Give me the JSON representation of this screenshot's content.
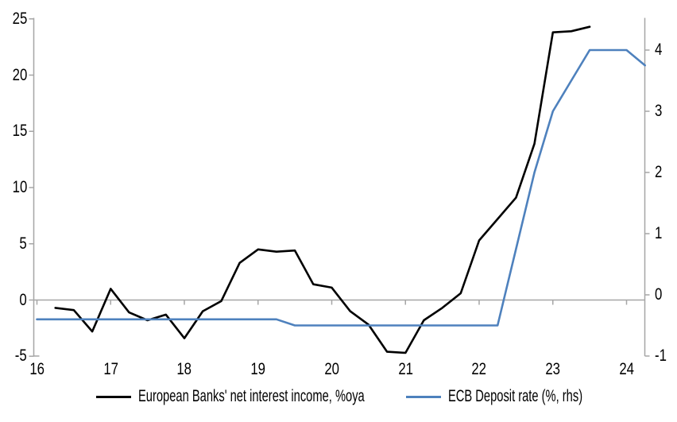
{
  "chart_data": {
    "type": "line",
    "title": "",
    "grid": "zero-line-only",
    "x_axis": {
      "range": [
        16,
        24.25
      ],
      "ticks": [
        16,
        17,
        18,
        19,
        20,
        21,
        22,
        23,
        24
      ],
      "tick_labels": [
        "16",
        "17",
        "18",
        "19",
        "20",
        "21",
        "22",
        "23",
        "24"
      ]
    },
    "y_axis_left": {
      "range": [
        -5,
        25
      ],
      "ticks": [
        -5,
        0,
        5,
        10,
        15,
        20,
        25
      ],
      "tick_labels": [
        "-5",
        "0",
        "5",
        "10",
        "15",
        "20",
        "25"
      ]
    },
    "y_axis_right": {
      "range": [
        -1,
        4.5
      ],
      "ticks": [
        -1,
        0,
        1,
        2,
        3,
        4
      ],
      "tick_labels": [
        "-1",
        "0",
        "1",
        "2",
        "3",
        "4"
      ]
    },
    "legend_position": "bottom",
    "series": [
      {
        "name": "European Banks' net interest income, %oya",
        "axis": "left",
        "color": "#000000",
        "points": [
          [
            16.25,
            -0.7
          ],
          [
            16.5,
            -0.9
          ],
          [
            16.75,
            -2.8
          ],
          [
            17.0,
            1.0
          ],
          [
            17.25,
            -1.1
          ],
          [
            17.5,
            -1.8
          ],
          [
            17.75,
            -1.3
          ],
          [
            18.0,
            -3.4
          ],
          [
            18.25,
            -1.0
          ],
          [
            18.5,
            -0.1
          ],
          [
            18.75,
            3.3
          ],
          [
            19.0,
            4.5
          ],
          [
            19.25,
            4.3
          ],
          [
            19.5,
            4.4
          ],
          [
            19.75,
            1.4
          ],
          [
            20.0,
            1.1
          ],
          [
            20.25,
            -1.0
          ],
          [
            20.5,
            -2.2
          ],
          [
            20.75,
            -4.6
          ],
          [
            21.0,
            -4.7
          ],
          [
            21.25,
            -1.8
          ],
          [
            21.5,
            -0.7
          ],
          [
            21.75,
            0.6
          ],
          [
            22.0,
            5.3
          ],
          [
            22.25,
            7.2
          ],
          [
            22.5,
            9.1
          ],
          [
            22.75,
            13.9
          ],
          [
            23.0,
            23.8
          ],
          [
            23.25,
            23.9
          ],
          [
            23.5,
            24.3
          ]
        ]
      },
      {
        "name": "ECB Deposit rate (%, rhs)",
        "axis": "right",
        "color": "#4E81BD",
        "points": [
          [
            16.0,
            -0.4
          ],
          [
            16.25,
            -0.4
          ],
          [
            16.5,
            -0.4
          ],
          [
            16.75,
            -0.4
          ],
          [
            17.0,
            -0.4
          ],
          [
            17.25,
            -0.4
          ],
          [
            17.5,
            -0.4
          ],
          [
            17.75,
            -0.4
          ],
          [
            18.0,
            -0.4
          ],
          [
            18.25,
            -0.4
          ],
          [
            18.5,
            -0.4
          ],
          [
            18.75,
            -0.4
          ],
          [
            19.0,
            -0.4
          ],
          [
            19.25,
            -0.4
          ],
          [
            19.5,
            -0.5
          ],
          [
            19.75,
            -0.5
          ],
          [
            20.0,
            -0.5
          ],
          [
            20.25,
            -0.5
          ],
          [
            20.5,
            -0.5
          ],
          [
            20.75,
            -0.5
          ],
          [
            21.0,
            -0.5
          ],
          [
            21.25,
            -0.5
          ],
          [
            21.5,
            -0.5
          ],
          [
            21.75,
            -0.5
          ],
          [
            22.0,
            -0.5
          ],
          [
            22.25,
            -0.5
          ],
          [
            22.5,
            0.75
          ],
          [
            22.75,
            2.0
          ],
          [
            23.0,
            3.0
          ],
          [
            23.25,
            3.5
          ],
          [
            23.5,
            4.0
          ],
          [
            23.75,
            4.0
          ],
          [
            24.0,
            4.0
          ],
          [
            24.25,
            3.75
          ]
        ]
      }
    ],
    "colors": {
      "axis_line": "#A6A6A6",
      "zero_line": "#A6A6A6",
      "text": "#000000"
    }
  }
}
